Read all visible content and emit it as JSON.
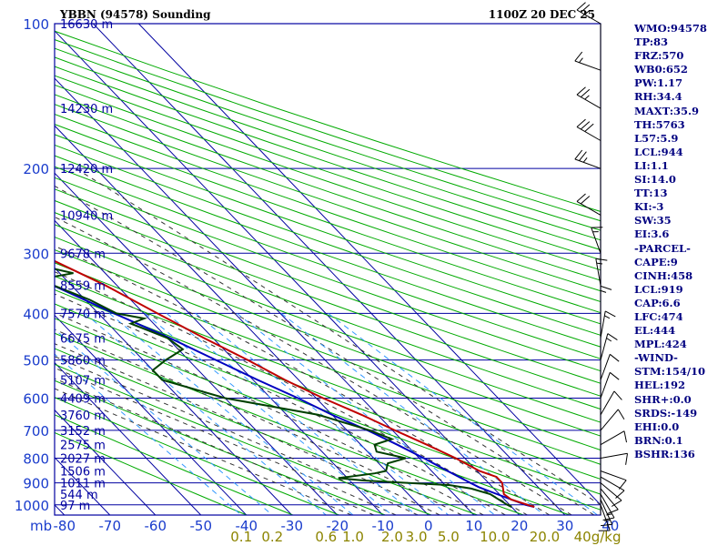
{
  "header": {
    "station": "YBBN (94578) Sounding",
    "time": "1100Z 20 DEC 25"
  },
  "colors": {
    "frame": "#0000a0",
    "label": "#1a3ccc",
    "temperature": "#c00000",
    "dewpoint": "#004000",
    "parcel": "#0000c0",
    "dry_adiabat": "#00aa00",
    "moist_adiabat": "#333333",
    "mixing_ratio": "#3399ff"
  },
  "indices": [
    "WMO:94578",
    "TP:83",
    "FRZ:570",
    "WB0:652",
    "PW:1.17",
    "RH:34.4",
    "MAXT:35.9",
    "TH:5763",
    "L57:5.9",
    "LCL:944",
    "LI:1.1",
    "SI:14.0",
    "TT:13",
    "KI:-3",
    "SW:35",
    "EI:3.6",
    "-PARCEL-",
    "CAPE:9",
    "CINH:458",
    "LCL:919",
    "CAP:6.6",
    "LFC:474",
    "EL:444",
    "MPL:424",
    "-WIND-",
    "STM:154/10",
    "HEL:192",
    "SHR+:0.0",
    "SRDS:-149",
    "EHI:0.0",
    "BRN:0.1",
    "BSHR:136"
  ],
  "chart_data": {
    "type": "skew-t",
    "title": "YBBN (94578) Sounding",
    "time": "1100Z 20 DEC 25",
    "xlabel_units": "",
    "ylabel_units": "mb",
    "temperature_ticks": [
      "-80",
      "-70",
      "-60",
      "-50",
      "-40",
      "-30",
      "-20",
      "-10",
      "0",
      "10",
      "20",
      "30",
      "40"
    ],
    "pressure_ticks": [
      100,
      200,
      300,
      400,
      500,
      600,
      700,
      800,
      900,
      1000
    ],
    "pressure_label_unit": "mb",
    "height_labels": [
      {
        "p": 100,
        "label": "16630 m"
      },
      {
        "p": 150,
        "label": "14230 m"
      },
      {
        "p": 200,
        "label": "12420 m"
      },
      {
        "p": 250,
        "label": "10940 m"
      },
      {
        "p": 300,
        "label": "9678 m"
      },
      {
        "p": 350,
        "label": "8559 m"
      },
      {
        "p": 400,
        "label": "7570 m"
      },
      {
        "p": 450,
        "label": "6675 m"
      },
      {
        "p": 500,
        "label": "5860 m"
      },
      {
        "p": 550,
        "label": "5107 m"
      },
      {
        "p": 600,
        "label": "4409 m"
      },
      {
        "p": 650,
        "label": "3760 m"
      },
      {
        "p": 700,
        "label": "3152 m"
      },
      {
        "p": 750,
        "label": "2575 m"
      },
      {
        "p": 800,
        "label": "2027 m"
      },
      {
        "p": 850,
        "label": "1506 m"
      },
      {
        "p": 900,
        "label": "1011 m"
      },
      {
        "p": 950,
        "label": "544 m"
      },
      {
        "p": 1000,
        "label": "97 m"
      }
    ],
    "mixing_ratio_labels": [
      "0.1",
      "0.2",
      "0.6",
      "1.0",
      "2.0",
      "3.0",
      "5.0",
      "10.0",
      "20.0",
      "40"
    ],
    "mixing_ratio_unit": "g/kg",
    "temperature": [
      [
        1010,
        25.0
      ],
      [
        1000,
        24.0
      ],
      [
        975,
        21.5
      ],
      [
        950,
        21.0
      ],
      [
        925,
        22.0
      ],
      [
        900,
        23.0
      ],
      [
        875,
        23.0
      ],
      [
        850,
        20.5
      ],
      [
        800,
        18.0
      ],
      [
        750,
        14.5
      ],
      [
        700,
        10.5
      ],
      [
        650,
        6.5
      ],
      [
        600,
        1.5
      ],
      [
        550,
        -3.0
      ],
      [
        500,
        -7.0
      ],
      [
        450,
        -12.0
      ],
      [
        400,
        -17.0
      ],
      [
        350,
        -22.5
      ],
      [
        300,
        -30.5
      ],
      [
        250,
        -40.0
      ],
      [
        200,
        -51.0
      ],
      [
        150,
        -63.0
      ],
      [
        120,
        -70.0
      ],
      [
        100,
        -76.0
      ]
    ],
    "dewpoint": [
      [
        1010,
        20.0
      ],
      [
        1000,
        19.5
      ],
      [
        950,
        18.0
      ],
      [
        925,
        15.0
      ],
      [
        910,
        11.0
      ],
      [
        900,
        2.0
      ],
      [
        890,
        -7.0
      ],
      [
        880,
        -12.0
      ],
      [
        860,
        -3.0
      ],
      [
        850,
        0.0
      ],
      [
        820,
        2.0
      ],
      [
        800,
        7.0
      ],
      [
        775,
        2.0
      ],
      [
        750,
        3.0
      ],
      [
        730,
        8.0
      ],
      [
        700,
        5.0
      ],
      [
        650,
        -3.0
      ],
      [
        600,
        -20.0
      ],
      [
        550,
        -30.0
      ],
      [
        525,
        -30.0
      ],
      [
        500,
        -25.0
      ],
      [
        475,
        -19.0
      ],
      [
        450,
        -20.0
      ],
      [
        420,
        -25.0
      ],
      [
        410,
        -21.0
      ],
      [
        400,
        -26.0
      ],
      [
        375,
        -29.0
      ],
      [
        340,
        -36.0
      ],
      [
        330,
        -27.0
      ],
      [
        310,
        -37.0
      ],
      [
        300,
        -40.0
      ],
      [
        275,
        -42.0
      ],
      [
        250,
        -45.0
      ],
      [
        200,
        -56.0
      ],
      [
        150,
        -70.0
      ]
    ],
    "parcel": [
      [
        1010,
        25.0
      ],
      [
        1000,
        23.5
      ],
      [
        950,
        19.5
      ],
      [
        919,
        17.0
      ],
      [
        900,
        16.0
      ],
      [
        850,
        13.5
      ],
      [
        800,
        11.0
      ],
      [
        750,
        8.0
      ],
      [
        700,
        4.5
      ],
      [
        650,
        0.0
      ],
      [
        600,
        -4.0
      ],
      [
        550,
        -9.0
      ],
      [
        500,
        -14.0
      ],
      [
        450,
        -19.5
      ],
      [
        400,
        -26.5
      ],
      [
        350,
        -34.0
      ],
      [
        300,
        -43.0
      ],
      [
        250,
        -53.0
      ],
      [
        200,
        -65.0
      ],
      [
        150,
        -80.0
      ]
    ],
    "wind_barbs": [
      {
        "p": 1000,
        "dir": 160,
        "spd": 10
      },
      {
        "p": 975,
        "dir": 155,
        "spd": 15
      },
      {
        "p": 950,
        "dir": 150,
        "spd": 15
      },
      {
        "p": 925,
        "dir": 140,
        "spd": 10
      },
      {
        "p": 900,
        "dir": 130,
        "spd": 10
      },
      {
        "p": 875,
        "dir": 120,
        "spd": 10
      },
      {
        "p": 850,
        "dir": 110,
        "spd": 10
      },
      {
        "p": 800,
        "dir": 80,
        "spd": 10
      },
      {
        "p": 750,
        "dir": 60,
        "spd": 10
      },
      {
        "p": 700,
        "dir": 40,
        "spd": 10
      },
      {
        "p": 650,
        "dir": 30,
        "spd": 10
      },
      {
        "p": 600,
        "dir": 20,
        "spd": 10
      },
      {
        "p": 550,
        "dir": 20,
        "spd": 10
      },
      {
        "p": 500,
        "dir": 15,
        "spd": 15
      },
      {
        "p": 450,
        "dir": 10,
        "spd": 15
      },
      {
        "p": 400,
        "dir": 360,
        "spd": 15
      },
      {
        "p": 350,
        "dir": 350,
        "spd": 15
      },
      {
        "p": 300,
        "dir": 340,
        "spd": 15
      },
      {
        "p": 250,
        "dir": 300,
        "spd": 20
      },
      {
        "p": 200,
        "dir": 290,
        "spd": 25
      },
      {
        "p": 175,
        "dir": 300,
        "spd": 30
      },
      {
        "p": 150,
        "dir": 300,
        "spd": 25
      },
      {
        "p": 125,
        "dir": 290,
        "spd": 15
      },
      {
        "p": 100,
        "dir": 300,
        "spd": 25
      }
    ]
  }
}
